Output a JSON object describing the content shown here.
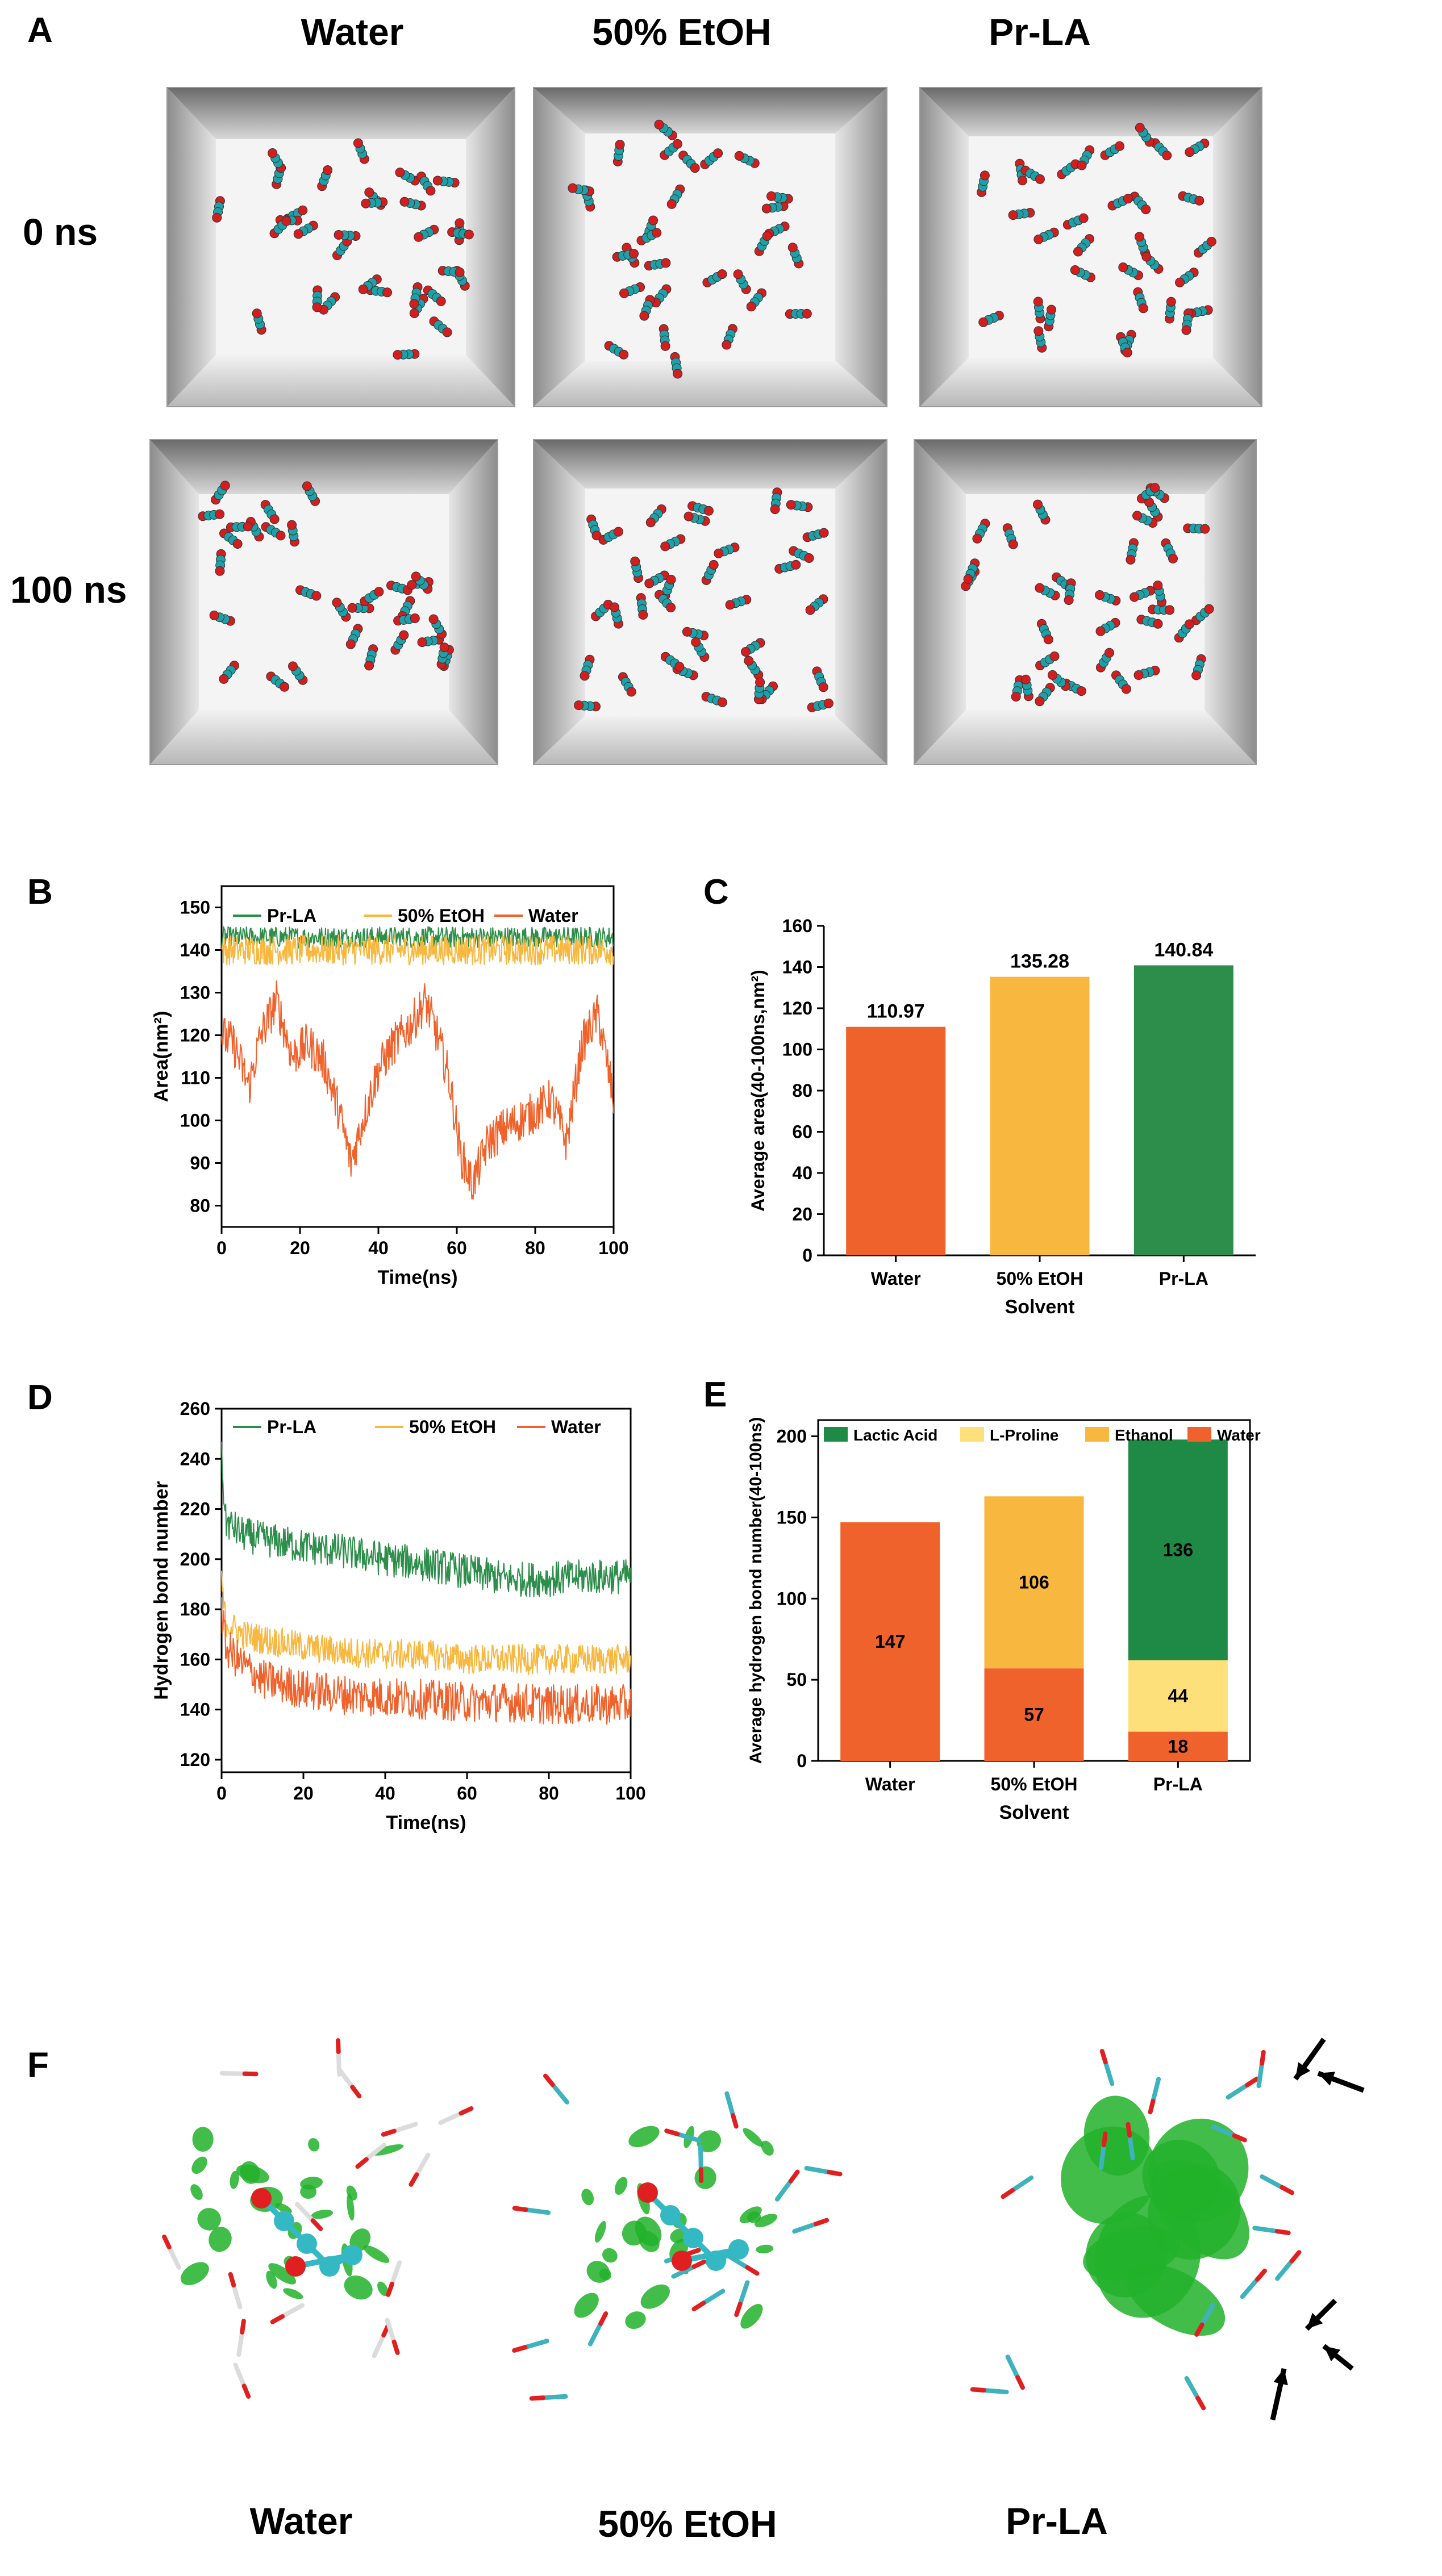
{
  "panel_a": {
    "letter": "A",
    "columns": [
      "Water",
      "50% EtOH",
      "Pr-LA"
    ],
    "rows": [
      "0 ns",
      "100 ns"
    ]
  },
  "panel_b": {
    "letter": "B"
  },
  "panel_c": {
    "letter": "C"
  },
  "panel_d": {
    "letter": "D"
  },
  "panel_e": {
    "letter": "E"
  },
  "panel_f": {
    "letter": "F",
    "labels": [
      "Water",
      "50% EtOH",
      "Pr-LA"
    ]
  },
  "colors": {
    "water": "#f0622c",
    "etoh": "#f8b73e",
    "prla": "#2c8e4a",
    "lactic_acid": "#1e8a45",
    "l_proline": "#fde07a",
    "ethanol": "#f8b73e",
    "water_bar": "#f0622c"
  },
  "chart_data": [
    {
      "id": "B",
      "type": "line",
      "title": "",
      "xlabel": "Time(ns)",
      "ylabel": "Area(nm²)",
      "xlim": [
        0,
        100
      ],
      "ylim": [
        75,
        155
      ],
      "xticks": [
        0,
        20,
        40,
        60,
        80,
        100
      ],
      "yticks": [
        80,
        90,
        100,
        110,
        120,
        130,
        140,
        150
      ],
      "legend": [
        "Pr-LA",
        "50% EtOH",
        "Water"
      ],
      "series": [
        {
          "name": "Pr-LA",
          "mean": 143,
          "amp": 2.5,
          "values": [
            143,
            144,
            145,
            143,
            144,
            145,
            144,
            143,
            144,
            145,
            144,
            143,
            144,
            145,
            143,
            144,
            145,
            144,
            143,
            144,
            144
          ]
        },
        {
          "name": "50% EtOH",
          "mean": 140,
          "amp": 3.5,
          "values": [
            140,
            141,
            140,
            139,
            141,
            142,
            140,
            139,
            141,
            140,
            141,
            140,
            139,
            140,
            141,
            140,
            139,
            141,
            140,
            141,
            140
          ]
        },
        {
          "name": "Water",
          "x": [
            0,
            3,
            7,
            10,
            14,
            18,
            22,
            26,
            30,
            33,
            36,
            40,
            44,
            48,
            52,
            55,
            58,
            61,
            64,
            68,
            72,
            76,
            80,
            84,
            88,
            92,
            96,
            100
          ],
          "values": [
            120,
            118,
            108,
            120,
            128,
            115,
            118,
            114,
            102,
            90,
            100,
            112,
            118,
            122,
            128,
            120,
            110,
            92,
            85,
            95,
            98,
            100,
            102,
            105,
            95,
            118,
            125,
            105
          ]
        }
      ]
    },
    {
      "id": "C",
      "type": "bar",
      "title": "",
      "xlabel": "Solvent",
      "ylabel": "Average area(40-100ns,nm²)",
      "ylim": [
        0,
        160
      ],
      "yticks": [
        0,
        20,
        40,
        60,
        80,
        100,
        120,
        140,
        160
      ],
      "categories": [
        "Water",
        "50% EtOH",
        "Pr-LA"
      ],
      "values": [
        110.97,
        135.28,
        140.84
      ],
      "value_labels": [
        "110.97",
        "135.28",
        "140.84"
      ]
    },
    {
      "id": "D",
      "type": "line",
      "title": "",
      "xlabel": "Time(ns)",
      "ylabel": "Hydrogen bond number",
      "xlim": [
        0,
        100
      ],
      "ylim": [
        115,
        260
      ],
      "xticks": [
        0,
        20,
        40,
        60,
        80,
        100
      ],
      "yticks": [
        120,
        140,
        160,
        180,
        200,
        220,
        240,
        260
      ],
      "legend": [
        "Pr-LA",
        "50% EtOH",
        "Water"
      ],
      "series": [
        {
          "name": "Pr-LA",
          "x": [
            0,
            1,
            5,
            10,
            20,
            30,
            40,
            50,
            60,
            70,
            80,
            90,
            100
          ],
          "values": [
            240,
            215,
            210,
            208,
            205,
            203,
            200,
            198,
            195,
            192,
            192,
            193,
            193
          ]
        },
        {
          "name": "50% EtOH",
          "x": [
            0,
            1,
            5,
            10,
            20,
            30,
            40,
            50,
            60,
            70,
            80,
            90,
            100
          ],
          "values": [
            190,
            175,
            170,
            168,
            165,
            163,
            162,
            162,
            160,
            160,
            160,
            160,
            160
          ]
        },
        {
          "name": "Water",
          "x": [
            0,
            1,
            5,
            10,
            20,
            30,
            40,
            50,
            60,
            70,
            80,
            90,
            100
          ],
          "values": [
            180,
            165,
            158,
            152,
            148,
            146,
            145,
            144,
            143,
            143,
            142,
            142,
            142
          ]
        }
      ]
    },
    {
      "id": "E",
      "type": "bar",
      "stacked": true,
      "title": "",
      "xlabel": "Solvent",
      "ylabel": "Average hydrogen bond number(40-100ns)",
      "ylim": [
        0,
        210
      ],
      "yticks": [
        0,
        50,
        100,
        150,
        200
      ],
      "categories": [
        "Water",
        "50% EtOH",
        "Pr-LA"
      ],
      "legend": [
        "Lactic Acid",
        "L-Proline",
        "Ethanol",
        "Water"
      ],
      "series": [
        {
          "name": "Water",
          "values": [
            147,
            57,
            18
          ],
          "labels": [
            "147",
            "57",
            "18"
          ]
        },
        {
          "name": "Ethanol",
          "values": [
            0,
            106,
            0
          ],
          "labels": [
            "",
            "106",
            ""
          ]
        },
        {
          "name": "L-Proline",
          "values": [
            0,
            0,
            44
          ],
          "labels": [
            "",
            "",
            "44"
          ]
        },
        {
          "name": "Lactic Acid",
          "values": [
            0,
            0,
            136
          ],
          "labels": [
            "",
            "",
            "136"
          ]
        }
      ]
    }
  ]
}
